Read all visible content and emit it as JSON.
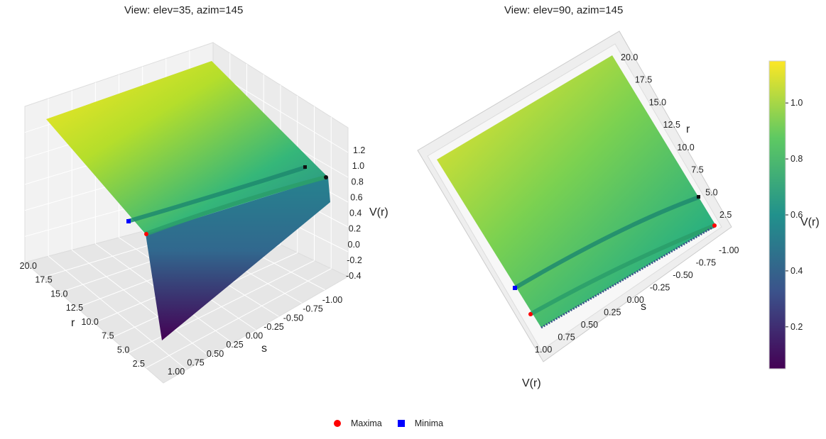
{
  "chart_data": [
    {
      "type": "surface",
      "title": "View: elev=35, azim=145",
      "view": {
        "elev": 35,
        "azim": 145
      },
      "axes": {
        "r": {
          "label": "r",
          "ticks": [
            "2.5",
            "5.0",
            "7.5",
            "10.0",
            "12.5",
            "15.0",
            "17.5",
            "20.0"
          ],
          "range": [
            1,
            20
          ]
        },
        "s": {
          "label": "s",
          "ticks": [
            "-1.00",
            "-0.75",
            "-0.50",
            "-0.25",
            "0.00",
            "0.25",
            "0.50",
            "0.75",
            "1.00"
          ],
          "range": [
            -1,
            1
          ]
        },
        "z": {
          "label": "V(r)",
          "ticks": [
            "-0.4",
            "-0.2",
            "0.0",
            "0.2",
            "0.4",
            "0.6",
            "0.8",
            "1.0",
            "1.2"
          ],
          "range": [
            -0.4,
            1.2
          ]
        }
      },
      "colormap": "viridis",
      "extrema": {
        "maxima": {
          "r": 1.7
        },
        "minima": {
          "r": 5.0
        }
      }
    },
    {
      "type": "surface",
      "title": "View: elev=90, azim=145",
      "view": {
        "elev": 90,
        "azim": 145
      },
      "axes": {
        "r": {
          "label": "r",
          "ticks": [
            "2.5",
            "5.0",
            "7.5",
            "10.0",
            "12.5",
            "15.0",
            "17.5",
            "20.0"
          ]
        },
        "s": {
          "label": "s",
          "ticks": [
            "-1.00",
            "-0.75",
            "-0.50",
            "-0.25",
            "0.00",
            "0.25",
            "0.50",
            "0.75",
            "1.00"
          ]
        },
        "z": {
          "label": "V(r)"
        }
      },
      "colormap": "viridis"
    }
  ],
  "colorbar": {
    "label": "V(r)",
    "ticks": [
      "0.2",
      "0.4",
      "0.6",
      "0.8",
      "1.0"
    ],
    "range": [
      0.05,
      1.15
    ],
    "colormap": "viridis"
  },
  "legend": {
    "items": [
      {
        "label": "Maxima",
        "color": "#ff0000",
        "marker": "circle"
      },
      {
        "label": "Minima",
        "color": "#0000ff",
        "marker": "square"
      }
    ]
  }
}
